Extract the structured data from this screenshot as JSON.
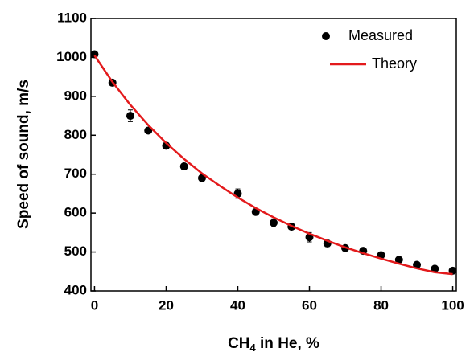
{
  "chart_data": {
    "type": "scatter",
    "x_label": [
      "CH",
      "4",
      " in He, %"
    ],
    "y_label": "Speed of sound, m/s",
    "xlim": [
      -1,
      101
    ],
    "ylim": [
      400,
      1100
    ],
    "xticks": [
      0,
      20,
      40,
      60,
      80,
      100
    ],
    "yticks": [
      400,
      500,
      600,
      700,
      800,
      900,
      1000,
      1100
    ],
    "legend": "upper right",
    "series": [
      {
        "name": "Measured",
        "color": "#000000",
        "x": [
          0,
          5,
          10,
          15,
          20,
          25,
          30,
          40,
          45,
          50,
          55,
          60,
          65,
          70,
          75,
          80,
          85,
          90,
          95,
          100
        ],
        "values": [
          1008,
          935,
          850,
          812,
          773,
          720,
          690,
          650,
          603,
          575,
          565,
          538,
          522,
          510,
          503,
          492,
          480,
          467,
          457,
          452
        ],
        "errors": [
          5,
          5,
          15,
          5,
          8,
          5,
          5,
          12,
          5,
          10,
          5,
          12,
          8,
          5,
          5,
          5,
          5,
          5,
          5,
          5
        ]
      },
      {
        "name": "Theory",
        "color": "#e31a1c",
        "x": [
          0,
          5,
          10,
          15,
          20,
          25,
          30,
          35,
          40,
          45,
          50,
          55,
          60,
          65,
          70,
          75,
          80,
          85,
          90,
          95,
          100
        ],
        "values": [
          1005,
          937,
          878,
          826,
          780,
          739,
          702,
          670,
          640,
          613,
          589,
          567,
          547,
          529,
          512,
          497,
          483,
          470,
          458,
          448,
          443
        ]
      }
    ]
  }
}
